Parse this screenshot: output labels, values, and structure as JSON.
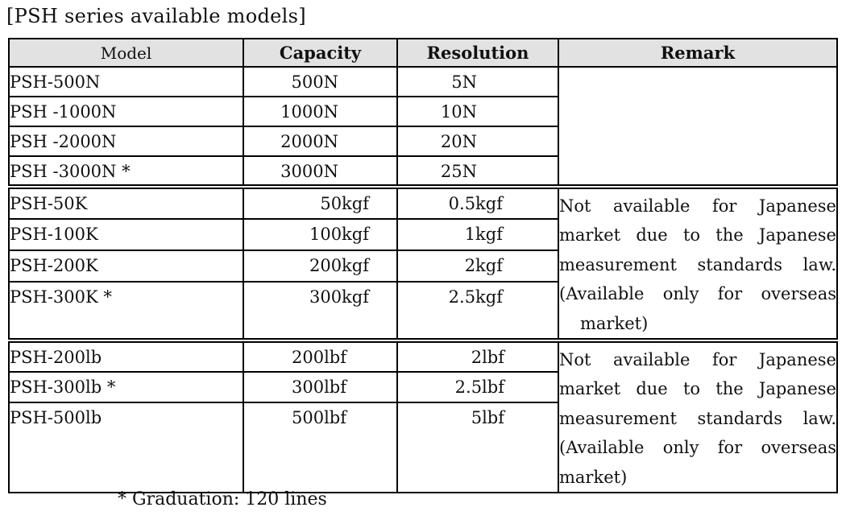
{
  "title": "[PSH series available models]",
  "footnote": "* Graduation: 120 lines",
  "table": {
    "headers": {
      "model": "Model",
      "capacity": "Capacity",
      "resolution": "Resolution",
      "remark": "Remark"
    },
    "groups": [
      {
        "name": "newton-models",
        "rows": [
          {
            "model": "PSH-500N",
            "capacity": "500N",
            "resolution": "5N"
          },
          {
            "model": "PSH -1000N",
            "capacity": "1000N",
            "resolution": "10N"
          },
          {
            "model": "PSH -2000N",
            "capacity": "2000N",
            "resolution": "20N"
          },
          {
            "model": "PSH -3000N *",
            "capacity": "3000N",
            "resolution": "25N"
          }
        ],
        "remark_lines": []
      },
      {
        "name": "kgf-models",
        "rows": [
          {
            "model": "PSH-50K",
            "capacity": "50kgf",
            "resolution": "0.5kgf"
          },
          {
            "model": "PSH-100K",
            "capacity": "100kgf",
            "resolution": "1kgf"
          },
          {
            "model": "PSH-200K",
            "capacity": "200kgf",
            "resolution": "2kgf"
          },
          {
            "model": "PSH-300K *",
            "capacity": "300kgf",
            "resolution": "2.5kgf"
          }
        ],
        "remark_lines": [
          "Not available for Japanese",
          "market due to the Japanese",
          "measurement standards law.",
          "(Available only for overseas",
          "market)"
        ]
      },
      {
        "name": "lbf-models",
        "rows": [
          {
            "model": "PSH-200lb",
            "capacity": "200lbf",
            "resolution": "2lbf"
          },
          {
            "model": "PSH-300lb *",
            "capacity": "300lbf",
            "resolution": "2.5lbf"
          },
          {
            "model": "PSH-500lb",
            "capacity": "500lbf",
            "resolution": "5lbf"
          }
        ],
        "remark_lines": [
          "Not available for Japanese",
          "market due to the Japanese",
          "measurement standards law.",
          "(Available only for overseas",
          "market)"
        ]
      }
    ]
  }
}
